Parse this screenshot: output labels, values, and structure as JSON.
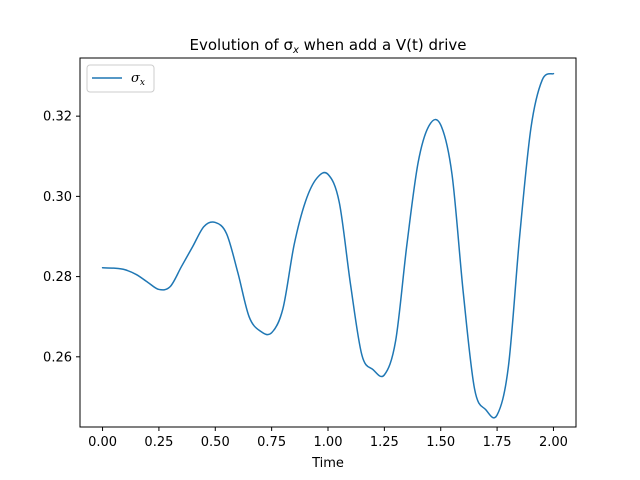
{
  "chart_data": {
    "type": "line",
    "title": "Evolution of σ",
    "title_sub": "x",
    "title_suffix": " when add a V(t) drive",
    "xlabel": "Time",
    "ylabel": "",
    "xlim": [
      -0.1,
      2.1
    ],
    "ylim": [
      0.2425,
      0.3345
    ],
    "xticks": [
      0.0,
      0.25,
      0.5,
      0.75,
      1.0,
      1.25,
      1.5,
      1.75,
      2.0
    ],
    "xtick_labels": [
      "0.00",
      "0.25",
      "0.50",
      "0.75",
      "1.00",
      "1.25",
      "1.50",
      "1.75",
      "2.00"
    ],
    "yticks": [
      0.26,
      0.28,
      0.3,
      0.32
    ],
    "ytick_labels": [
      "0.26",
      "0.28",
      "0.30",
      "0.32"
    ],
    "grid": false,
    "legend_position": "top-left",
    "series": [
      {
        "name": "σ",
        "name_sub": "x",
        "color": "#1f77b4",
        "x": [
          0.0,
          0.05,
          0.1,
          0.15,
          0.2,
          0.25,
          0.3,
          0.35,
          0.4,
          0.45,
          0.5,
          0.55,
          0.6,
          0.65,
          0.7,
          0.75,
          0.8,
          0.85,
          0.9,
          0.95,
          1.0,
          1.05,
          1.1,
          1.15,
          1.2,
          1.25,
          1.3,
          1.35,
          1.4,
          1.45,
          1.5,
          1.55,
          1.6,
          1.65,
          1.7,
          1.75,
          1.8,
          1.85,
          1.9,
          1.95,
          2.0
        ],
        "y": [
          0.2822,
          0.2821,
          0.2817,
          0.2805,
          0.2786,
          0.2768,
          0.2775,
          0.2825,
          0.2875,
          0.2925,
          0.2935,
          0.2907,
          0.281,
          0.27,
          0.2664,
          0.266,
          0.272,
          0.288,
          0.2987,
          0.3045,
          0.3055,
          0.2985,
          0.278,
          0.2605,
          0.2568,
          0.2555,
          0.264,
          0.288,
          0.3085,
          0.3178,
          0.3178,
          0.3055,
          0.276,
          0.252,
          0.2468,
          0.2455,
          0.2575,
          0.29,
          0.317,
          0.329,
          0.3306
        ]
      }
    ]
  }
}
